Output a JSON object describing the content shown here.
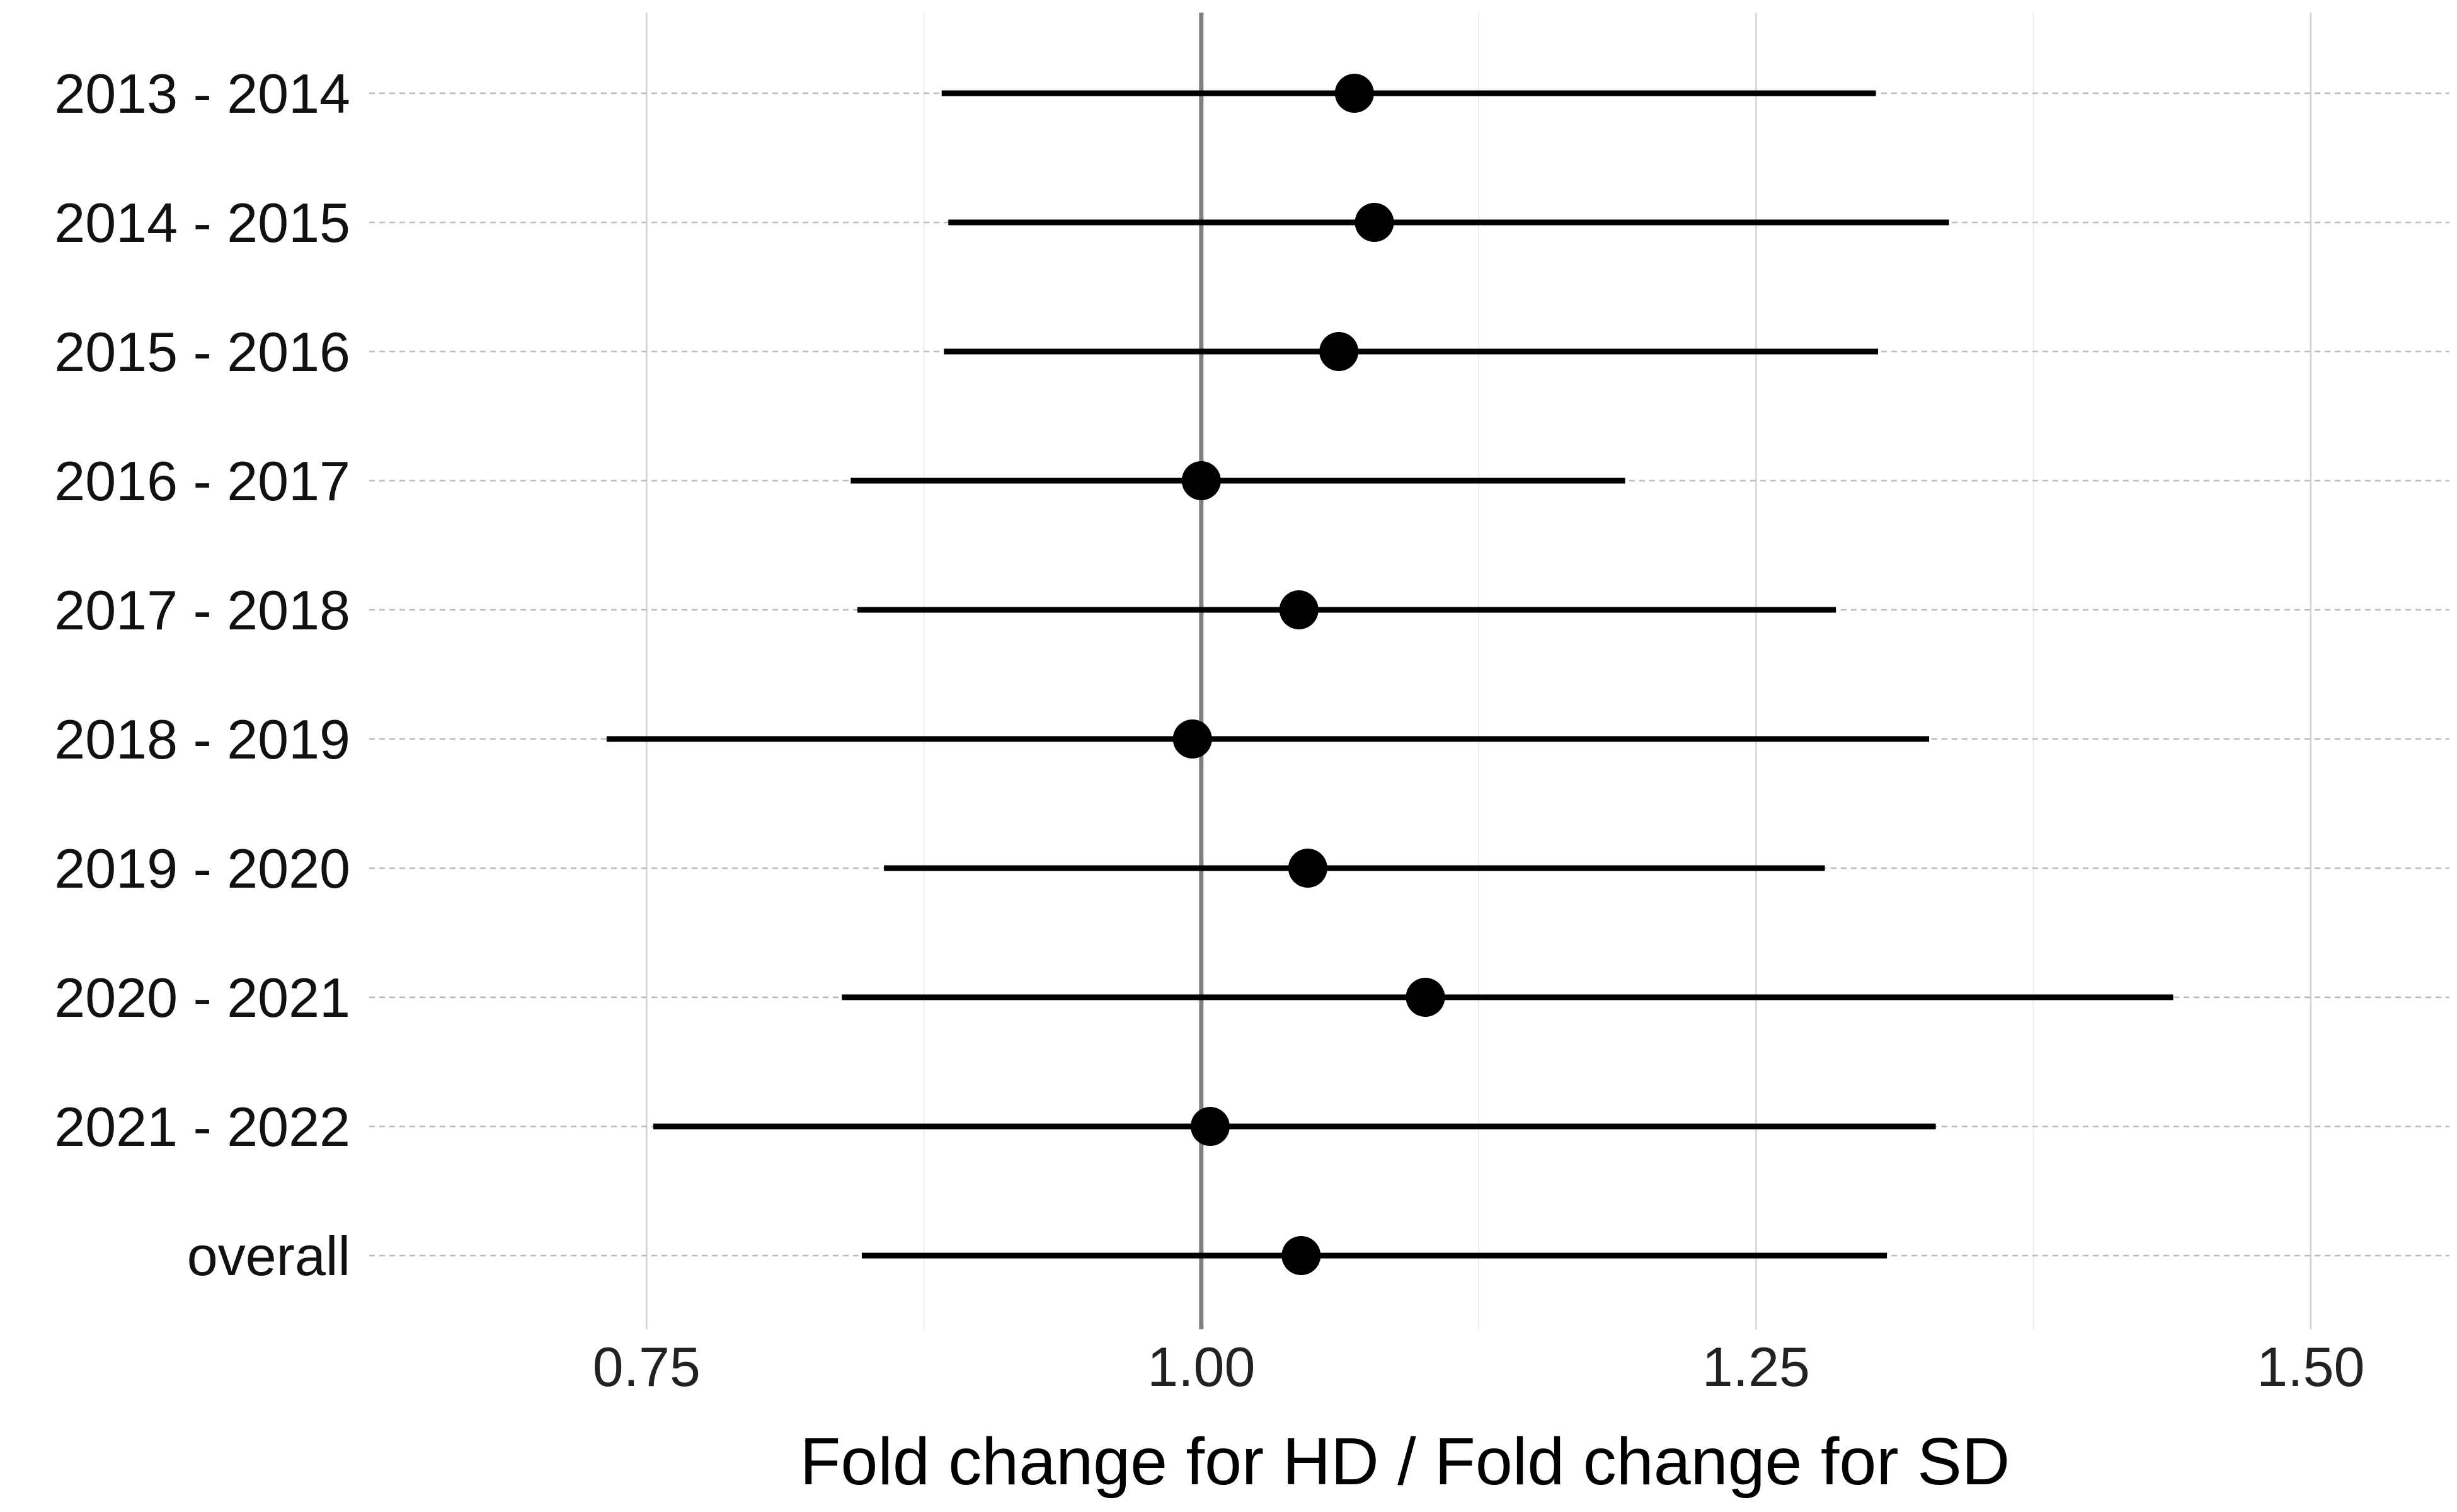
{
  "chart_data": {
    "type": "forest",
    "xlabel": "Fold change for HD / Fold change for SD",
    "ylabel": "",
    "xlim": [
      0.625,
      1.5625
    ],
    "x_ticks": [
      "0.75",
      "1.00",
      "1.25",
      "1.50"
    ],
    "x_tick_values": [
      0.75,
      1.0,
      1.25,
      1.5
    ],
    "reference_line": 1.0,
    "categories": [
      "2013 - 2014",
      "2014 - 2015",
      "2015 - 2016",
      "2016 - 2017",
      "2017 - 2018",
      "2018 - 2019",
      "2019 - 2020",
      "2020 - 2021",
      "2021 - 2022",
      "overall"
    ],
    "estimates": [
      1.069,
      1.078,
      1.062,
      1.0,
      1.044,
      0.996,
      1.048,
      1.101,
      1.004,
      1.045
    ],
    "lower": [
      0.883,
      0.886,
      0.884,
      0.842,
      0.845,
      0.732,
      0.857,
      0.838,
      0.753,
      0.847
    ],
    "upper": [
      1.304,
      1.337,
      1.305,
      1.191,
      1.286,
      1.328,
      1.281,
      1.438,
      1.331,
      1.309
    ],
    "grid": true,
    "legend": "none",
    "colors": {
      "points": "#000000",
      "reference": "#808080",
      "grid": "#d3d3d3"
    }
  }
}
